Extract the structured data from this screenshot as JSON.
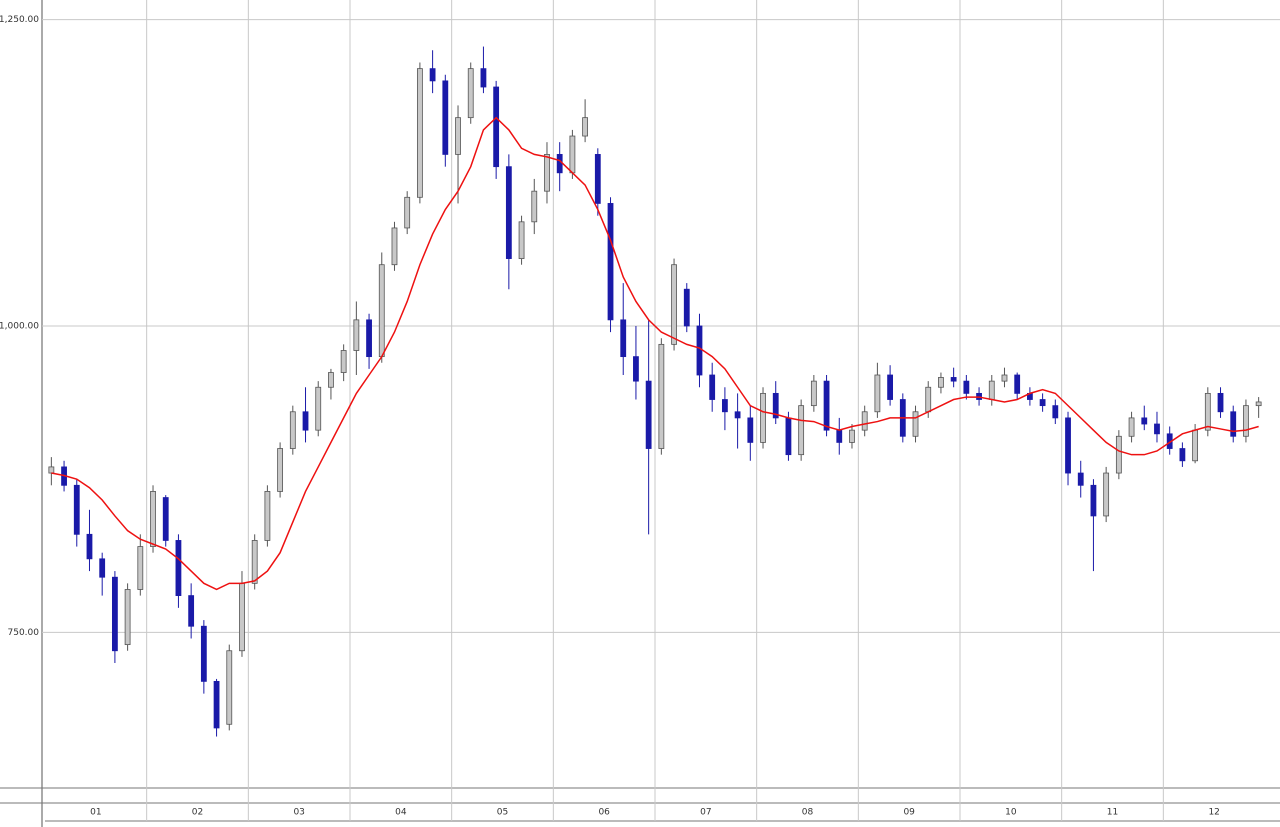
{
  "chart_data": {
    "type": "candlestick",
    "ylim": [
      623,
      1266
    ],
    "yticks": [
      {
        "value": 750,
        "label": "750.00"
      },
      {
        "value": 1000,
        "label": "1,000.00"
      },
      {
        "value": 1250,
        "label": "1,250.00"
      }
    ],
    "xlim": [
      -0.5,
      95.5
    ],
    "xticks": [
      {
        "value": -0.5,
        "label": "01"
      },
      {
        "value": 7.5,
        "label": "02"
      },
      {
        "value": 15.5,
        "label": "03"
      },
      {
        "value": 23.5,
        "label": "04"
      },
      {
        "value": 31.5,
        "label": "05"
      },
      {
        "value": 39.5,
        "label": "06"
      },
      {
        "value": 47.5,
        "label": "07"
      },
      {
        "value": 55.5,
        "label": "08"
      },
      {
        "value": 63.5,
        "label": "09"
      },
      {
        "value": 71.5,
        "label": "10"
      },
      {
        "value": 79.5,
        "label": "11"
      },
      {
        "value": 87.5,
        "label": "12"
      }
    ],
    "grid": true,
    "up_color": "#9a9a9a",
    "down_color": "#1a1aa8",
    "open": [
      880,
      885,
      870,
      830,
      810,
      795,
      740,
      785,
      820,
      860,
      825,
      780,
      755,
      710,
      675,
      735,
      790,
      825,
      865,
      900,
      930,
      915,
      950,
      962,
      980,
      1005,
      975,
      1050,
      1080,
      1105,
      1210,
      1200,
      1140,
      1170,
      1210,
      1195,
      1130,
      1055,
      1085,
      1110,
      1140,
      1125,
      1155,
      1140,
      1100,
      1005,
      975,
      955,
      900,
      985,
      1030,
      1000,
      960,
      940,
      930,
      925,
      905,
      945,
      925,
      895,
      935,
      955,
      915,
      905,
      915,
      930,
      960,
      940,
      910,
      930,
      950,
      958,
      955,
      945,
      940,
      955,
      960,
      945,
      940,
      935,
      925,
      880,
      870,
      845,
      880,
      910,
      925,
      920,
      912,
      900,
      890,
      915,
      945,
      930,
      910,
      935
    ],
    "high": [
      893,
      890,
      875,
      850,
      815,
      800,
      790,
      830,
      870,
      862,
      830,
      790,
      760,
      712,
      740,
      800,
      830,
      870,
      905,
      935,
      950,
      955,
      965,
      985,
      1020,
      1010,
      1060,
      1085,
      1110,
      1215,
      1225,
      1205,
      1180,
      1215,
      1228,
      1200,
      1140,
      1090,
      1120,
      1150,
      1150,
      1160,
      1185,
      1145,
      1105,
      1035,
      1000,
      1005,
      990,
      1055,
      1035,
      1010,
      970,
      950,
      945,
      935,
      950,
      955,
      930,
      940,
      960,
      960,
      925,
      920,
      935,
      970,
      968,
      945,
      935,
      955,
      962,
      966,
      960,
      950,
      960,
      966,
      962,
      950,
      945,
      940,
      930,
      890,
      875,
      885,
      915,
      930,
      935,
      930,
      918,
      905,
      920,
      950,
      950,
      935,
      940,
      942
    ],
    "low": [
      870,
      865,
      820,
      800,
      780,
      725,
      735,
      780,
      815,
      820,
      770,
      745,
      700,
      665,
      670,
      730,
      785,
      820,
      860,
      895,
      905,
      910,
      940,
      955,
      960,
      965,
      970,
      1045,
      1075,
      1100,
      1190,
      1130,
      1100,
      1165,
      1190,
      1120,
      1030,
      1050,
      1075,
      1100,
      1110,
      1120,
      1150,
      1090,
      995,
      960,
      940,
      830,
      895,
      980,
      995,
      950,
      930,
      915,
      900,
      890,
      900,
      920,
      890,
      890,
      930,
      910,
      895,
      900,
      910,
      925,
      935,
      905,
      905,
      925,
      945,
      950,
      940,
      935,
      935,
      950,
      940,
      935,
      930,
      920,
      870,
      860,
      800,
      840,
      875,
      905,
      915,
      905,
      895,
      885,
      888,
      910,
      925,
      905,
      905,
      925
    ],
    "close": [
      885,
      870,
      830,
      810,
      795,
      735,
      785,
      820,
      865,
      825,
      780,
      755,
      710,
      672,
      735,
      790,
      825,
      865,
      900,
      930,
      915,
      950,
      962,
      980,
      1005,
      975,
      1050,
      1080,
      1105,
      1210,
      1200,
      1140,
      1170,
      1210,
      1195,
      1130,
      1055,
      1085,
      1110,
      1140,
      1125,
      1155,
      1170,
      1100,
      1005,
      975,
      955,
      900,
      985,
      1050,
      1000,
      960,
      940,
      930,
      925,
      905,
      945,
      925,
      895,
      935,
      955,
      915,
      905,
      915,
      930,
      960,
      940,
      910,
      930,
      950,
      958,
      955,
      945,
      940,
      955,
      960,
      945,
      940,
      935,
      925,
      880,
      870,
      845,
      880,
      910,
      925,
      920,
      912,
      900,
      890,
      915,
      945,
      930,
      910,
      935,
      938
    ],
    "ma": {
      "color": "#ee1111",
      "values": [
        880,
        878,
        875,
        868,
        858,
        845,
        833,
        826,
        822,
        818,
        810,
        800,
        790,
        785,
        790,
        790,
        792,
        800,
        815,
        840,
        865,
        885,
        905,
        925,
        945,
        960,
        975,
        995,
        1020,
        1050,
        1075,
        1095,
        1110,
        1130,
        1160,
        1170,
        1160,
        1145,
        1140,
        1138,
        1135,
        1125,
        1115,
        1095,
        1070,
        1040,
        1020,
        1005,
        995,
        990,
        985,
        982,
        975,
        965,
        950,
        935,
        930,
        928,
        925,
        923,
        922,
        918,
        915,
        918,
        920,
        922,
        925,
        925,
        925,
        930,
        935,
        940,
        942,
        942,
        940,
        938,
        940,
        945,
        948,
        945,
        935,
        925,
        915,
        905,
        898,
        895,
        895,
        898,
        905,
        912,
        915,
        918,
        916,
        914,
        915,
        918
      ]
    }
  }
}
